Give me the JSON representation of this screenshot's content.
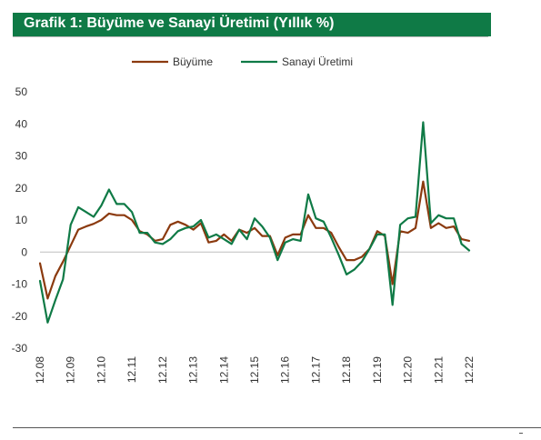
{
  "title": "Grafik 1: Büyüme ve Sanayi Üretimi (Yıllık %)",
  "chart_data": {
    "type": "line",
    "title": "Grafik 1: Büyüme ve Sanayi Üretimi (Yıllık %)",
    "xlabel": "",
    "ylabel": "",
    "ylim": [
      -30,
      50
    ],
    "yticks": [
      50,
      40,
      30,
      20,
      10,
      0,
      -10,
      -20,
      -30
    ],
    "xtick_labels": [
      "12.08",
      "12.09",
      "12.10",
      "12.11",
      "12.12",
      "12.13",
      "12.14",
      "12.15",
      "12.16",
      "12.17",
      "12.18",
      "12.19",
      "12.20",
      "12.21",
      "12.22"
    ],
    "x": [
      "12.08",
      "03.09",
      "06.09",
      "09.09",
      "12.09",
      "03.10",
      "06.10",
      "09.10",
      "12.10",
      "03.11",
      "06.11",
      "09.11",
      "12.11",
      "03.12",
      "06.12",
      "09.12",
      "12.12",
      "03.13",
      "06.13",
      "09.13",
      "12.13",
      "03.14",
      "06.14",
      "09.14",
      "12.14",
      "03.15",
      "06.15",
      "09.15",
      "12.15",
      "03.16",
      "06.16",
      "09.16",
      "12.16",
      "03.17",
      "06.17",
      "09.17",
      "12.17",
      "03.18",
      "06.18",
      "09.18",
      "12.18",
      "03.19",
      "06.19",
      "09.19",
      "12.19",
      "03.20",
      "06.20",
      "09.20",
      "12.20",
      "03.21",
      "06.21",
      "09.21",
      "12.21",
      "03.22",
      "06.22",
      "09.22",
      "12.22"
    ],
    "legend_position": "top",
    "grid": false,
    "series": [
      {
        "name": "Büyüme",
        "color": "#8b3a0f",
        "values": [
          -3.5,
          -14.5,
          -7.5,
          -3,
          2,
          7,
          8,
          8.8,
          10,
          12,
          11.5,
          11.5,
          10,
          6.5,
          5.5,
          3.5,
          4,
          8.5,
          9.5,
          8.5,
          7,
          9,
          3,
          3.5,
          5.5,
          3.5,
          7,
          6,
          7.5,
          5,
          5,
          -1,
          4.5,
          5.5,
          5.5,
          11.5,
          7.5,
          7.5,
          6,
          1.5,
          -2.5,
          -2.5,
          -1.5,
          1,
          6.5,
          5,
          -10,
          6.5,
          6,
          7.5,
          22,
          7.5,
          9,
          7.5,
          8,
          4,
          3.5
        ]
      },
      {
        "name": "Sanayi Üretimi",
        "color": "#0f7a46",
        "values": [
          -9,
          -22,
          -15,
          -8.5,
          8.5,
          14,
          12.5,
          11,
          14.5,
          19.5,
          15,
          15,
          12.5,
          6,
          6,
          3,
          2.5,
          4,
          6.5,
          7.5,
          8,
          10,
          4.5,
          5.5,
          4,
          2.5,
          7,
          4,
          10.5,
          8,
          4.5,
          -2.5,
          3,
          4,
          3.5,
          18,
          10.5,
          9.5,
          4.5,
          -1,
          -7,
          -5.5,
          -3,
          1,
          5.5,
          5.5,
          -16.5,
          8.5,
          10.5,
          11,
          40.5,
          9,
          11.5,
          10.5,
          10.5,
          2.5,
          0.5
        ]
      }
    ]
  }
}
